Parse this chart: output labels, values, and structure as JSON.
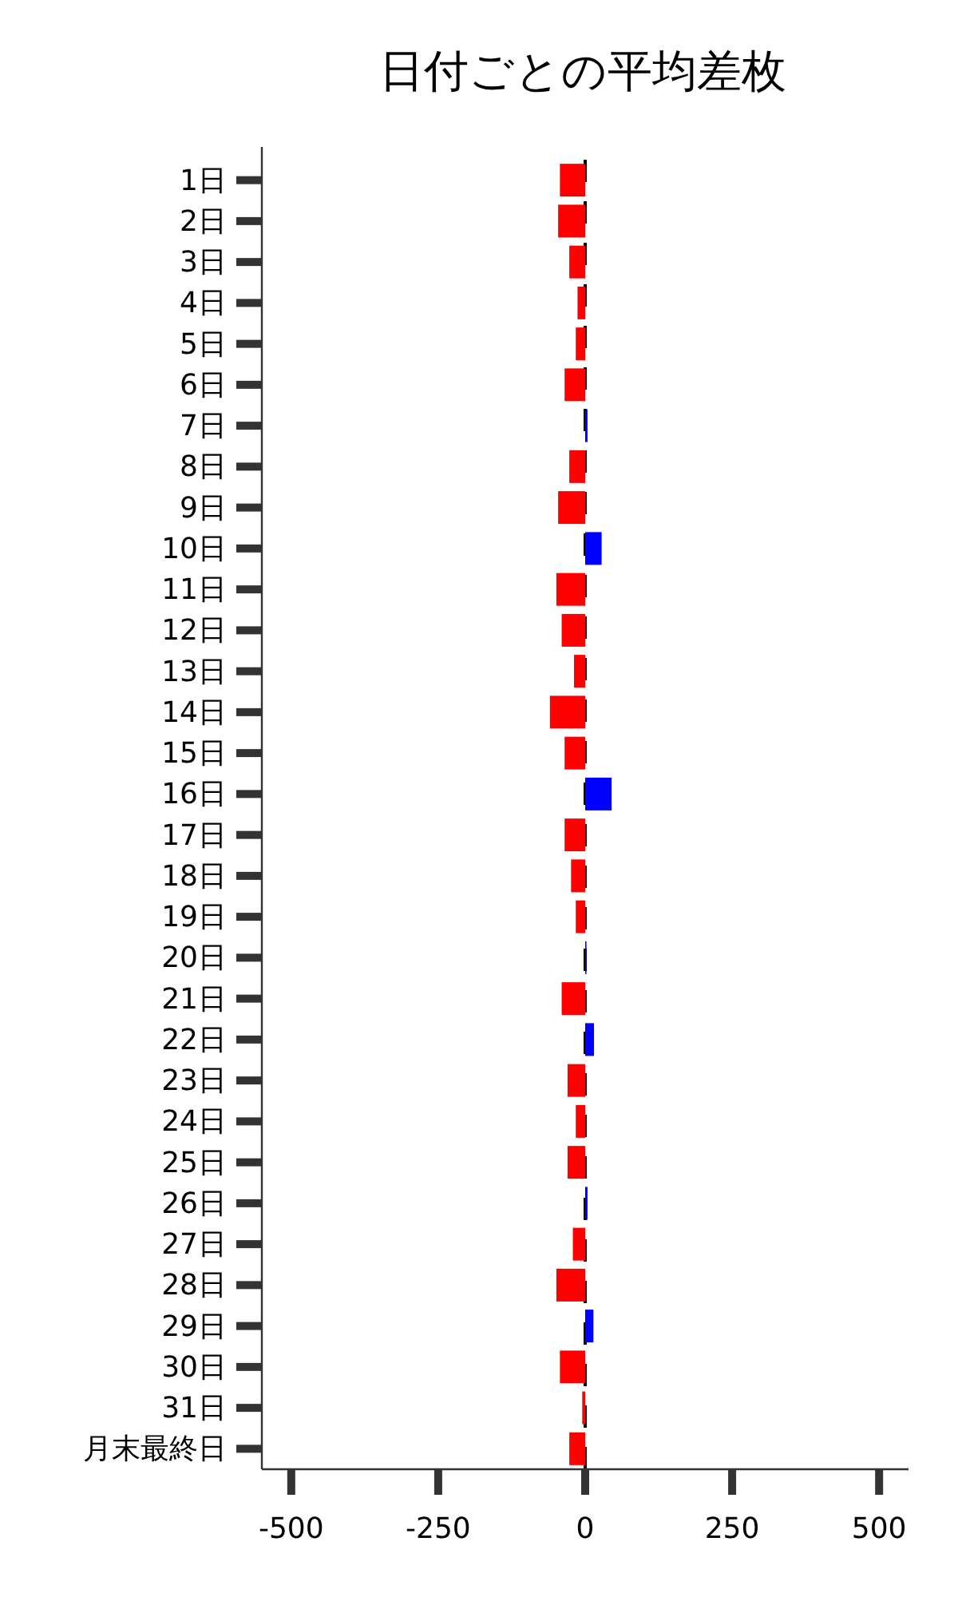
{
  "chart_data": {
    "type": "bar",
    "orientation": "horizontal",
    "title": "日付ごとの平均差枚",
    "categories": [
      "1日",
      "2日",
      "3日",
      "4日",
      "5日",
      "6日",
      "7日",
      "8日",
      "9日",
      "10日",
      "11日",
      "12日",
      "13日",
      "14日",
      "15日",
      "16日",
      "17日",
      "18日",
      "19日",
      "20日",
      "21日",
      "22日",
      "23日",
      "24日",
      "25日",
      "26日",
      "27日",
      "28日",
      "29日",
      "30日",
      "31日",
      "月末最終日"
    ],
    "values": [
      -43,
      -46,
      -27,
      -13,
      -16,
      -35,
      4,
      -27,
      -46,
      28,
      -49,
      -40,
      -19,
      -60,
      -35,
      45,
      -35,
      -24,
      -16,
      1,
      -40,
      15,
      -30,
      -16,
      -30,
      4,
      -21,
      -49,
      14,
      -43,
      -5,
      -27
    ],
    "colors": [
      "#ff0000",
      "#ff0000",
      "#ff0000",
      "#ff0000",
      "#ff0000",
      "#ff0000",
      "#0000ff",
      "#ff0000",
      "#ff0000",
      "#0000ff",
      "#ff0000",
      "#ff0000",
      "#ff0000",
      "#ff0000",
      "#ff0000",
      "#0000ff",
      "#ff0000",
      "#ff0000",
      "#ff0000",
      "#0000ff",
      "#ff0000",
      "#0000ff",
      "#ff0000",
      "#ff0000",
      "#ff0000",
      "#0000ff",
      "#ff0000",
      "#ff0000",
      "#0000ff",
      "#ff0000",
      "#ff0000",
      "#ff0000"
    ],
    "xlim": [
      -550,
      550
    ],
    "xticks": [
      -500,
      -250,
      0,
      250,
      500
    ],
    "ref_lines": [
      {
        "axis": "x",
        "value": 0,
        "color": "#000000",
        "line_style": "dashed"
      }
    ],
    "grid": false
  }
}
